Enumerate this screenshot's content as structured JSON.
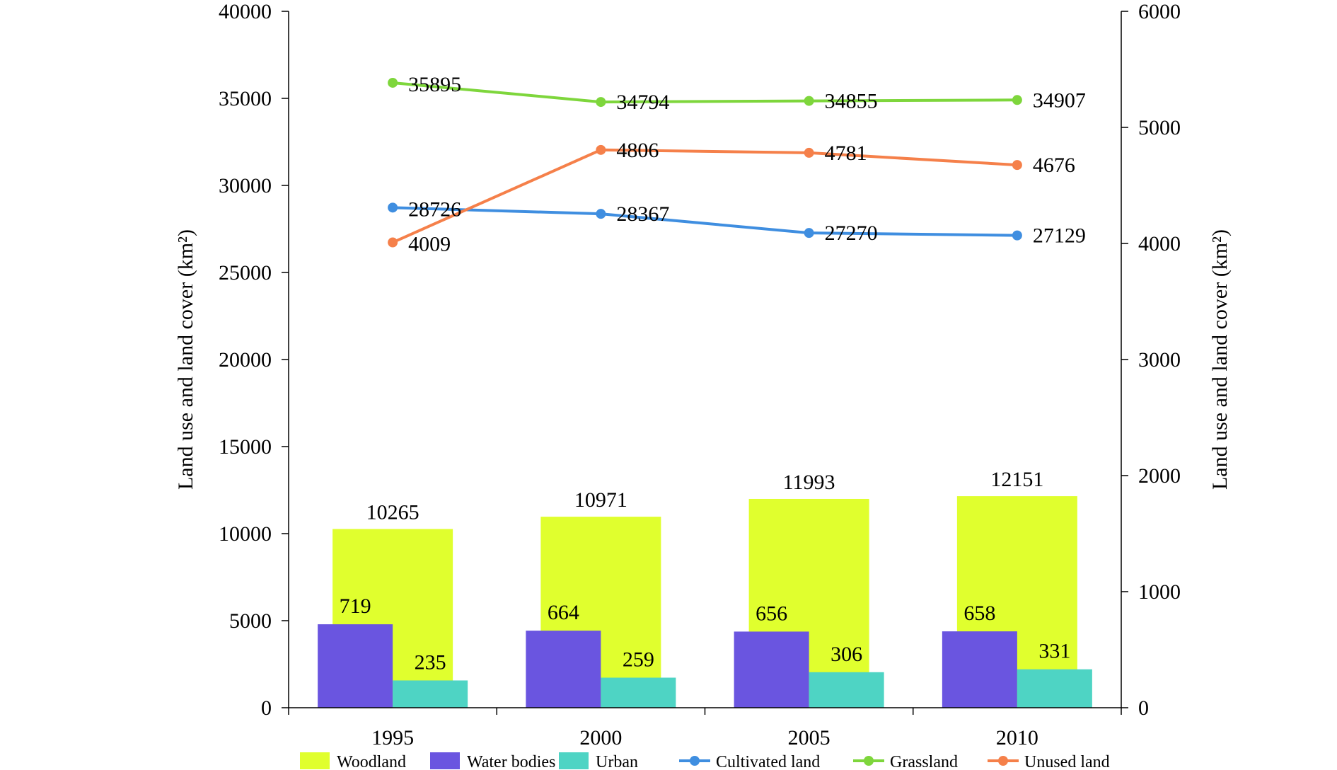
{
  "chart_data": {
    "type": "bar",
    "categories": [
      "1995",
      "2000",
      "2005",
      "2010"
    ],
    "left_axis": {
      "label": "Land use and land cover (km²)",
      "range": [
        0,
        40000
      ],
      "ticks": [
        "0",
        "5000",
        "10000",
        "15000",
        "20000",
        "25000",
        "30000",
        "35000",
        "40000"
      ]
    },
    "right_axis": {
      "label": "Land use and land cover (km²)",
      "range": [
        0,
        6000
      ],
      "ticks": [
        "0",
        "1000",
        "2000",
        "3000",
        "4000",
        "5000",
        "6000"
      ]
    },
    "series": [
      {
        "name": "Woodland",
        "kind": "bar",
        "axis": "left",
        "color": "#e0ff2e",
        "values": [
          10265,
          10971,
          11993,
          12151
        ],
        "labels": [
          "10265",
          "10971",
          "11993",
          "12151"
        ]
      },
      {
        "name": "Water bodies",
        "kind": "bar",
        "axis": "right",
        "color": "#6a55e0",
        "values": [
          719,
          664,
          656,
          658
        ],
        "labels": [
          "719",
          "664",
          "656",
          "658"
        ]
      },
      {
        "name": "Urban",
        "kind": "bar",
        "axis": "right",
        "color": "#4ed4c4",
        "values": [
          235,
          259,
          306,
          331
        ],
        "labels": [
          "235",
          "259",
          "306",
          "331"
        ]
      },
      {
        "name": "Cultivated land",
        "kind": "line",
        "axis": "left",
        "color": "#3f8ee0",
        "values": [
          28726,
          28367,
          27270,
          27129
        ],
        "labels": [
          "28726",
          "28367",
          "27270",
          "27129"
        ]
      },
      {
        "name": "Grassland",
        "kind": "line",
        "axis": "left",
        "color": "#7ed63c",
        "values": [
          35895,
          34794,
          34855,
          34907
        ],
        "labels": [
          "35895",
          "34794",
          "34855",
          "34907"
        ]
      },
      {
        "name": "Unused land",
        "kind": "line",
        "axis": "right",
        "color": "#f5804a",
        "values": [
          4009,
          4806,
          4781,
          4676
        ],
        "labels": [
          "4009",
          "4806",
          "4781",
          "4676"
        ]
      }
    ],
    "legend_position": "bottom",
    "grid": false
  }
}
